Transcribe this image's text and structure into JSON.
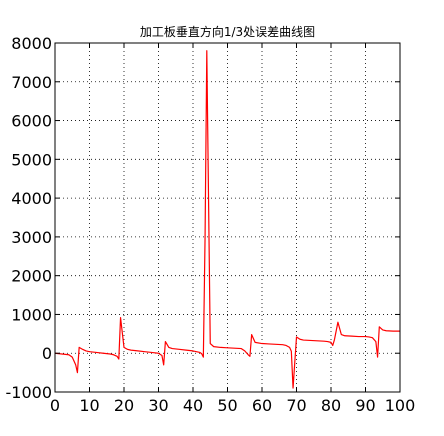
{
  "chart_data": {
    "type": "line",
    "title": "加工板垂直方向1/3处误差曲线图",
    "xlabel": "",
    "ylabel": "",
    "xlim": [
      0,
      100
    ],
    "ylim": [
      -1000,
      8000
    ],
    "x_ticks": [
      "0",
      "10",
      "20",
      "30",
      "40",
      "50",
      "60",
      "70",
      "80",
      "90",
      "100"
    ],
    "y_ticks": [
      "-1000",
      "0",
      "1000",
      "2000",
      "3000",
      "4000",
      "5000",
      "6000",
      "7000",
      "8000"
    ],
    "grid": true,
    "colors": {
      "series": "#ff0000",
      "axes": "#000000",
      "background": "#ffffff"
    },
    "series": [
      {
        "x": [
          0,
          1,
          2,
          3,
          4,
          5,
          6,
          6.5,
          7,
          8,
          9,
          10,
          12,
          14,
          16,
          17,
          18,
          18.5,
          19,
          20,
          21,
          22,
          24,
          26,
          28,
          30,
          31,
          31.5,
          32,
          33,
          34,
          36,
          38,
          40,
          41,
          42,
          42.5,
          43,
          43.5,
          44,
          45,
          46,
          48,
          50,
          52,
          54,
          55,
          56,
          56.5,
          57,
          58,
          60,
          62,
          64,
          66,
          67,
          68,
          68.5,
          69,
          70,
          71,
          72,
          74,
          76,
          78,
          79,
          80,
          80.5,
          81,
          82,
          83,
          84,
          86,
          88,
          90,
          91,
          92,
          93,
          93.5,
          94,
          95,
          96,
          98,
          100
        ],
        "y": [
          0,
          -10,
          -20,
          -30,
          -40,
          -100,
          -300,
          -500,
          150,
          100,
          60,
          40,
          20,
          0,
          -20,
          -40,
          -80,
          -150,
          920,
          150,
          100,
          80,
          60,
          40,
          20,
          0,
          -60,
          -300,
          300,
          150,
          120,
          100,
          80,
          60,
          40,
          20,
          -10,
          -100,
          3000,
          7800,
          250,
          170,
          150,
          140,
          130,
          120,
          60,
          -40,
          -80,
          480,
          280,
          250,
          240,
          230,
          220,
          200,
          150,
          50,
          -900,
          420,
          360,
          340,
          330,
          320,
          310,
          300,
          280,
          200,
          350,
          800,
          480,
          450,
          440,
          430,
          430,
          420,
          400,
          300,
          -100,
          680,
          600,
          580,
          570,
          570
        ]
      }
    ]
  }
}
